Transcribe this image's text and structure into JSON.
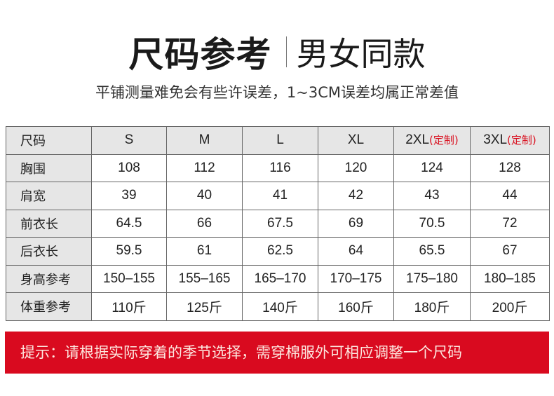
{
  "header": {
    "title": "尺码参考",
    "subtitle": "男女同款",
    "note": "平铺测量难免会有些许误差，1~3CM误差均属正常差值"
  },
  "table": {
    "corner": "尺码",
    "sizes": [
      {
        "label": "S",
        "tag": ""
      },
      {
        "label": "M",
        "tag": ""
      },
      {
        "label": "L",
        "tag": ""
      },
      {
        "label": "XL",
        "tag": ""
      },
      {
        "label": "2XL",
        "tag": "(定制)"
      },
      {
        "label": "3XL",
        "tag": "(定制)"
      }
    ],
    "rows": [
      {
        "label": "胸围",
        "values": [
          "108",
          "112",
          "116",
          "120",
          "124",
          "128"
        ]
      },
      {
        "label": "肩宽",
        "values": [
          "39",
          "40",
          "41",
          "42",
          "43",
          "44"
        ]
      },
      {
        "label": "前衣长",
        "values": [
          "64.5",
          "66",
          "67.5",
          "69",
          "70.5",
          "72"
        ]
      },
      {
        "label": "后衣长",
        "values": [
          "59.5",
          "61",
          "62.5",
          "64",
          "65.5",
          "67"
        ]
      },
      {
        "label": "身高参考",
        "values": [
          "150–155",
          "155–165",
          "165–170",
          "170–175",
          "175–180",
          "180–185"
        ]
      },
      {
        "label": "体重参考",
        "values": [
          "110斤",
          "125斤",
          "140斤",
          "160斤",
          "180斤",
          "200斤"
        ]
      }
    ]
  },
  "banner": {
    "text": "提示：请根据实际穿着的季节选择，需穿棉服外可相应调整一个尺码"
  },
  "colors": {
    "accent": "#d90a1f",
    "header_bg": "#e6e6e6"
  }
}
